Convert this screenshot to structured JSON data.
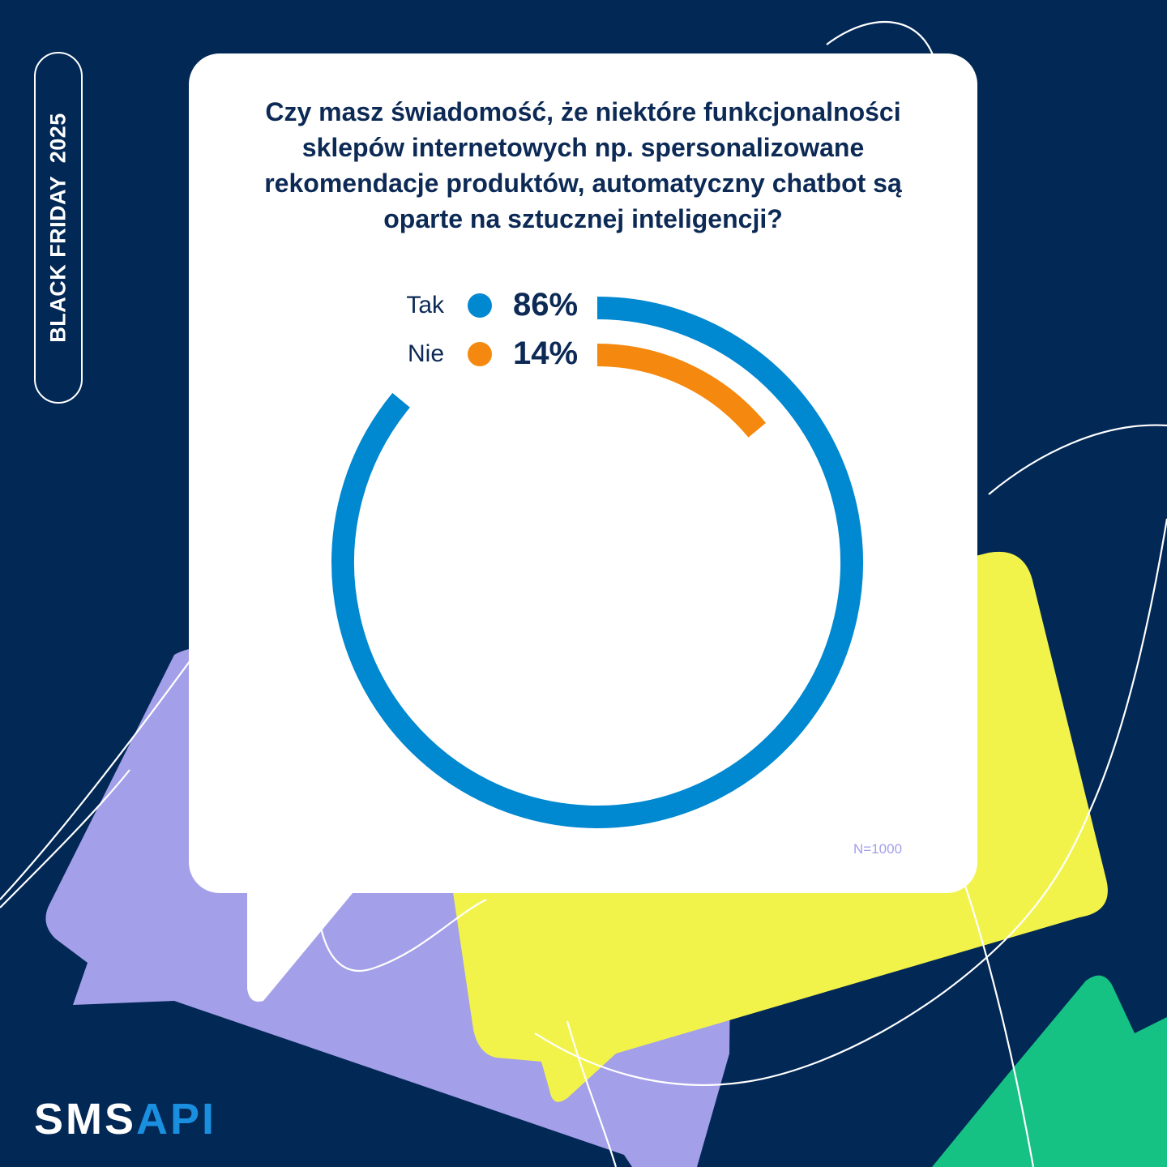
{
  "side_badge": {
    "text": "BLACK FRIDAY  2025"
  },
  "question": "Czy masz świadomość, że niektóre funkcjonalności sklepów internetowych np. spersonalizowane rekomendacje produktów, automatyczny chatbot są oparte na sztucznej inteligencji?",
  "chart_data": {
    "type": "pie",
    "style": "concentric-radial-bars",
    "categories": [
      "Tak",
      "Nie"
    ],
    "values": [
      86,
      14
    ],
    "value_labels": [
      "86%",
      "14%"
    ],
    "colors": [
      "#0088d1",
      "#f5890f"
    ],
    "legend_placement": "top-left-of-chart",
    "title": "",
    "xlabel": "",
    "ylabel": ""
  },
  "sample_note": "N=1000",
  "logo": {
    "part1": "SMS",
    "part2": "API"
  },
  "colors": {
    "background": "#022856",
    "card": "#ffffff",
    "text": "#0c2a55",
    "purple_bubble": "#a39fe9",
    "yellow_bubble": "#f2f34a",
    "green_shape": "#16c184",
    "accent_blue": "#1a8fe0"
  }
}
